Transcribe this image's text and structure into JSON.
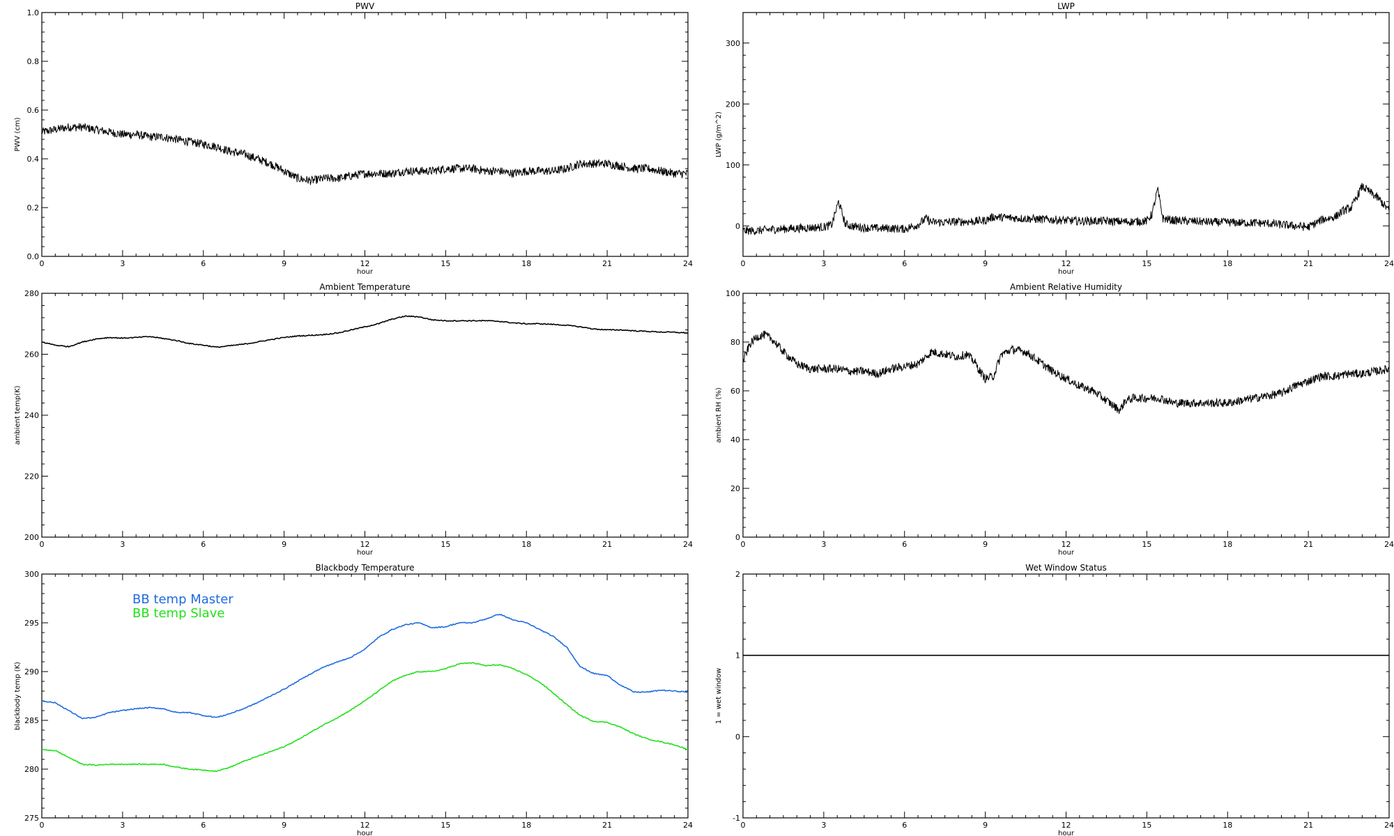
{
  "chart_data": [
    {
      "type": "line",
      "title": "PWV",
      "xlabel": "hour",
      "ylabel": "PWV (cm)",
      "xlim": [
        0,
        24
      ],
      "ylim": [
        0.0,
        1.0
      ],
      "x_ticks": [
        "0",
        "3",
        "6",
        "9",
        "12",
        "15",
        "18",
        "21",
        "24"
      ],
      "y_ticks": [
        "0.0",
        "0.2",
        "0.4",
        "0.6",
        "0.8",
        "1.0"
      ],
      "grid": false,
      "series": [
        {
          "color": "#000000",
          "style": "noisy",
          "x": [
            0,
            0.5,
            1,
            1.5,
            2,
            2.5,
            3,
            3.5,
            4,
            4.5,
            5,
            5.5,
            6,
            6.5,
            7,
            7.5,
            8,
            8.5,
            9,
            9.5,
            10,
            10.5,
            11,
            11.5,
            12,
            12.5,
            13,
            13.5,
            14,
            14.5,
            15,
            15.5,
            16,
            16.5,
            17,
            17.5,
            18,
            18.5,
            19,
            19.5,
            20,
            20.5,
            21,
            21.5,
            22,
            22.5,
            23,
            23.5,
            24
          ],
          "y": [
            0.51,
            0.52,
            0.53,
            0.53,
            0.52,
            0.51,
            0.5,
            0.5,
            0.49,
            0.49,
            0.48,
            0.47,
            0.46,
            0.45,
            0.43,
            0.42,
            0.4,
            0.38,
            0.35,
            0.32,
            0.31,
            0.32,
            0.32,
            0.33,
            0.34,
            0.34,
            0.34,
            0.35,
            0.35,
            0.35,
            0.36,
            0.36,
            0.36,
            0.35,
            0.35,
            0.34,
            0.35,
            0.35,
            0.35,
            0.36,
            0.38,
            0.38,
            0.38,
            0.37,
            0.36,
            0.36,
            0.35,
            0.34,
            0.34
          ]
        }
      ]
    },
    {
      "type": "line",
      "title": "LWP",
      "xlabel": "hour",
      "ylabel": "LWP (g/m^2)",
      "xlim": [
        0,
        24
      ],
      "ylim": [
        -50,
        350
      ],
      "x_ticks": [
        "0",
        "3",
        "6",
        "9",
        "12",
        "15",
        "18",
        "21",
        "24"
      ],
      "y_ticks": [
        "0",
        "100",
        "200",
        "300"
      ],
      "grid": false,
      "series": [
        {
          "color": "#000000",
          "style": "noisy",
          "x": [
            0,
            0.5,
            1,
            1.5,
            2,
            2.5,
            3,
            3.3,
            3.55,
            3.8,
            4,
            4.5,
            5,
            5.5,
            6,
            6.5,
            6.8,
            7,
            7.5,
            8,
            8.5,
            9,
            9.3,
            9.6,
            10,
            10.5,
            11,
            11.5,
            12,
            12.5,
            13,
            13.5,
            14,
            14.5,
            15,
            15.2,
            15.4,
            15.6,
            16,
            16.5,
            17,
            17.5,
            18,
            18.5,
            19,
            19.5,
            20,
            20.5,
            21,
            21.5,
            22,
            22.3,
            22.6,
            23,
            23.3,
            23.6,
            24
          ],
          "y": [
            -8,
            -8,
            -6,
            -5,
            -4,
            -3,
            -2,
            2,
            40,
            3,
            0,
            -3,
            -4,
            -4,
            -5,
            2,
            12,
            6,
            6,
            7,
            7,
            9,
            15,
            14,
            13,
            12,
            11,
            10,
            9,
            8,
            8,
            8,
            7,
            7,
            8,
            20,
            60,
            12,
            9,
            8,
            7,
            6,
            6,
            5,
            5,
            4,
            2,
            0,
            -2,
            10,
            15,
            25,
            30,
            65,
            55,
            45,
            25
          ]
        }
      ]
    },
    {
      "type": "line",
      "title": "Ambient Temperature",
      "xlabel": "hour",
      "ylabel": "ambient temp(K)",
      "xlim": [
        0,
        24
      ],
      "ylim": [
        200,
        280
      ],
      "x_ticks": [
        "0",
        "3",
        "6",
        "9",
        "12",
        "15",
        "18",
        "21",
        "24"
      ],
      "y_ticks": [
        "200",
        "220",
        "240",
        "260",
        "280"
      ],
      "grid": false,
      "series": [
        {
          "color": "#000000",
          "style": "smooth",
          "x": [
            0,
            0.5,
            1,
            1.5,
            2,
            2.5,
            3,
            3.5,
            4,
            4.5,
            5,
            5.5,
            6,
            6.5,
            7,
            7.5,
            8,
            8.5,
            9,
            9.5,
            10,
            10.5,
            11,
            11.5,
            12,
            12.5,
            13,
            13.5,
            14,
            14.5,
            15,
            15.5,
            16,
            16.5,
            17,
            17.5,
            18,
            18.5,
            19,
            19.5,
            20,
            20.5,
            21,
            21.5,
            22,
            22.5,
            23,
            23.5,
            24
          ],
          "y": [
            264,
            263,
            262.5,
            264,
            265,
            265.5,
            265.3,
            265.5,
            265.8,
            265.2,
            264.5,
            263.5,
            263,
            262.3,
            262.8,
            263.3,
            264,
            264.8,
            265.5,
            266,
            266.2,
            266.5,
            267,
            268,
            269,
            270,
            271.5,
            272.5,
            272.3,
            271.3,
            271,
            271,
            271,
            271,
            270.8,
            270.3,
            270,
            270,
            269.8,
            269.5,
            269,
            268.3,
            268,
            268,
            267.7,
            267.5,
            267.3,
            267.2,
            267
          ]
        }
      ]
    },
    {
      "type": "line",
      "title": "Ambient Relative Humidity",
      "xlabel": "hour",
      "ylabel": "ambient RH (%)",
      "xlim": [
        0,
        24
      ],
      "ylim": [
        0,
        100
      ],
      "x_ticks": [
        "0",
        "3",
        "6",
        "9",
        "12",
        "15",
        "18",
        "21",
        "24"
      ],
      "y_ticks": [
        "0",
        "20",
        "40",
        "60",
        "80",
        "100"
      ],
      "grid": false,
      "series": [
        {
          "color": "#000000",
          "style": "noisy",
          "x": [
            0,
            0.25,
            0.5,
            0.8,
            1.1,
            1.5,
            2,
            2.5,
            3,
            3.5,
            4,
            4.5,
            5,
            5.5,
            6,
            6.5,
            7,
            7.5,
            8,
            8.3,
            8.6,
            8.8,
            9,
            9.3,
            9.6,
            10,
            10.5,
            11,
            11.5,
            12,
            12.5,
            13,
            13.5,
            14,
            14.2,
            14.5,
            15,
            15.5,
            16,
            16.5,
            17,
            17.5,
            18,
            18.5,
            19,
            19.5,
            20,
            20.5,
            21,
            21.5,
            22,
            22.5,
            23,
            23.5,
            24
          ],
          "y": [
            72,
            79,
            82,
            83,
            81,
            76,
            71,
            69,
            69,
            69,
            68,
            68,
            67,
            69,
            70,
            71,
            76,
            75,
            74,
            75,
            72,
            68,
            65,
            66,
            75,
            77,
            76,
            72,
            68,
            65,
            62,
            60,
            56,
            52,
            56,
            57,
            57,
            57,
            55,
            55,
            55,
            55,
            55,
            56,
            57,
            58,
            59,
            62,
            64,
            66,
            66,
            67,
            67,
            68,
            69
          ]
        }
      ]
    },
    {
      "type": "line",
      "title": "Blackbody Temperature",
      "xlabel": "hour",
      "ylabel": "blackbody temp (K)",
      "xlim": [
        0,
        24
      ],
      "ylim": [
        275,
        300
      ],
      "x_ticks": [
        "0",
        "3",
        "6",
        "9",
        "12",
        "15",
        "18",
        "21",
        "24"
      ],
      "y_ticks": [
        "275",
        "280",
        "285",
        "290",
        "295",
        "300"
      ],
      "grid": false,
      "legend_position": "upper-left",
      "series": [
        {
          "name": "BB temp Master",
          "color": "#1f6be0",
          "style": "smooth",
          "x": [
            0,
            0.5,
            1,
            1.5,
            2,
            2.5,
            3,
            3.5,
            4,
            4.5,
            5,
            5.5,
            6,
            6.5,
            7,
            7.5,
            8,
            8.5,
            9,
            9.5,
            10,
            10.5,
            11,
            11.5,
            12,
            12.5,
            13,
            13.5,
            14,
            14.5,
            15,
            15.5,
            16,
            16.5,
            17,
            17.5,
            18,
            18.5,
            19,
            19.5,
            20,
            20.5,
            21,
            21.5,
            22,
            22.5,
            23,
            23.5,
            24
          ],
          "y": [
            287,
            286.8,
            286,
            285.2,
            285.3,
            285.8,
            286,
            286.2,
            286.3,
            286.2,
            285.8,
            285.8,
            285.5,
            285.3,
            285.7,
            286.2,
            286.8,
            287.5,
            288.2,
            289,
            289.8,
            290.5,
            291,
            291.5,
            292.3,
            293.5,
            294.3,
            294.8,
            295,
            294.5,
            294.6,
            295,
            295,
            295.4,
            295.9,
            295.3,
            295,
            294.3,
            293.6,
            292.5,
            290.5,
            289.8,
            289.6,
            288.6,
            287.9,
            287.9,
            288.1,
            288,
            287.9
          ]
        },
        {
          "name": "BB temp Slave",
          "color": "#22e01a",
          "style": "smooth",
          "x": [
            0,
            0.5,
            1,
            1.5,
            2,
            2.5,
            3,
            3.5,
            4,
            4.5,
            5,
            5.5,
            6,
            6.5,
            7,
            7.5,
            8,
            8.5,
            9,
            9.5,
            10,
            10.5,
            11,
            11.5,
            12,
            12.5,
            13,
            13.5,
            14,
            14.5,
            15,
            15.5,
            16,
            16.5,
            17,
            17.5,
            18,
            18.5,
            19,
            19.5,
            20,
            20.5,
            21,
            21.5,
            22,
            22.5,
            23,
            23.5,
            24
          ],
          "y": [
            282,
            281.9,
            281.2,
            280.5,
            280.4,
            280.5,
            280.5,
            280.5,
            280.5,
            280.5,
            280.2,
            280,
            279.9,
            279.8,
            280.2,
            280.8,
            281.3,
            281.8,
            282.3,
            283,
            283.8,
            284.6,
            285.3,
            286.1,
            287,
            288,
            289,
            289.6,
            290,
            290,
            290.3,
            290.8,
            290.9,
            290.6,
            290.7,
            290.3,
            289.7,
            288.9,
            287.8,
            286.6,
            285.5,
            284.9,
            284.8,
            284.3,
            283.6,
            283.1,
            282.8,
            282.5,
            282
          ]
        }
      ]
    },
    {
      "type": "line",
      "title": "Wet Window Status",
      "xlabel": "hour",
      "ylabel": "1 = wet window",
      "xlim": [
        0,
        24
      ],
      "ylim": [
        -1,
        2
      ],
      "x_ticks": [
        "0",
        "3",
        "6",
        "9",
        "12",
        "15",
        "18",
        "21",
        "24"
      ],
      "y_ticks": [
        "-1",
        "0",
        "1",
        "2"
      ],
      "grid": false,
      "series": [
        {
          "color": "#000000",
          "style": "smooth",
          "x": [
            0,
            24
          ],
          "y": [
            1,
            1
          ]
        }
      ]
    }
  ]
}
